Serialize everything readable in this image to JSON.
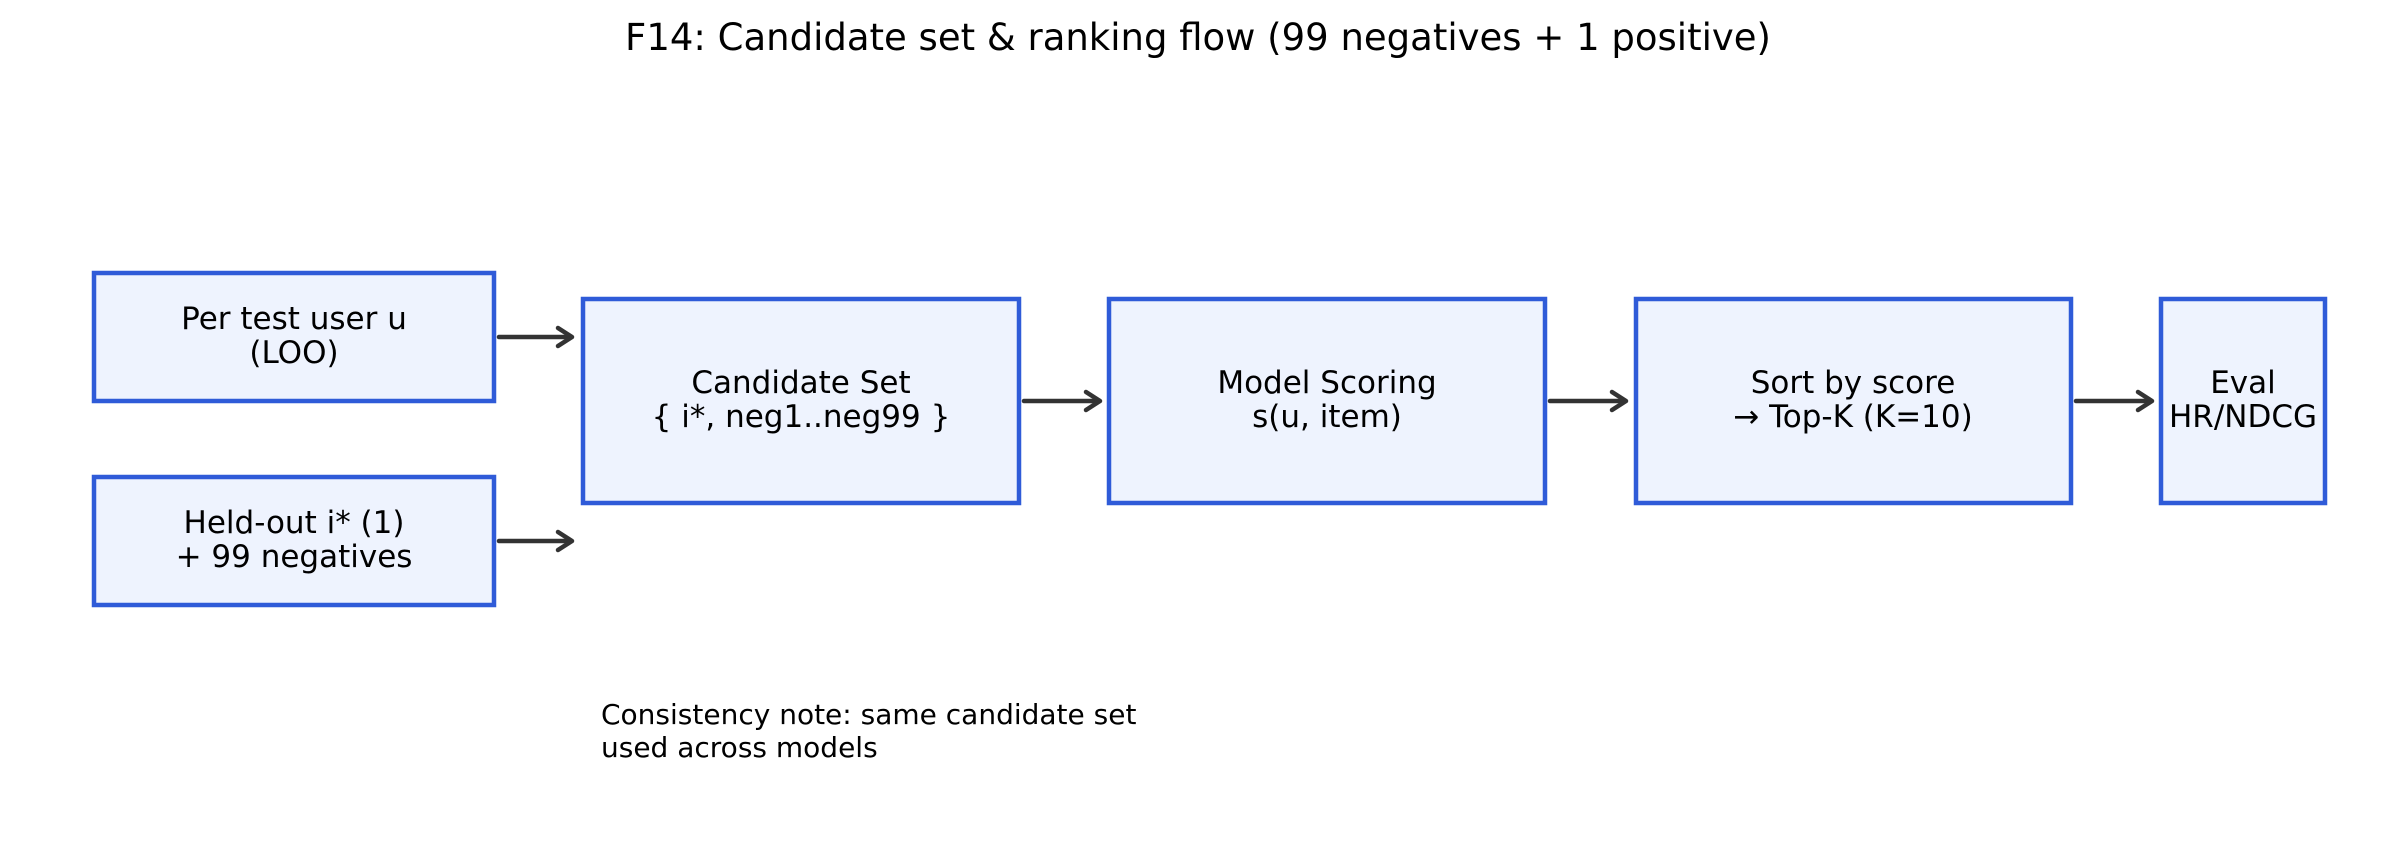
{
  "title": "F14: Candidate set & ranking flow (99 negatives + 1 positive)",
  "colors": {
    "box_fill": "#eef3fe",
    "box_stroke": "#2f5bd8",
    "arrow": "#333333",
    "text": "#000000"
  },
  "nodes": {
    "user": {
      "line1": "Per test user u",
      "line2": "(LOO)"
    },
    "heldout": {
      "line1": "Held-out i* (1)",
      "line2": "+ 99 negatives"
    },
    "candidate": {
      "line1": "Candidate Set",
      "line2": "{ i*, neg1..neg99 }"
    },
    "scoring": {
      "line1": "Model Scoring",
      "line2": "s(u, item)"
    },
    "sort": {
      "line1": "Sort by score",
      "line2": "→ Top-K (K=10)"
    },
    "eval": {
      "line1": "Eval",
      "line2": "HR/NDCG"
    }
  },
  "note": {
    "line1": "Consistency note: same candidate set",
    "line2": "used across models"
  }
}
